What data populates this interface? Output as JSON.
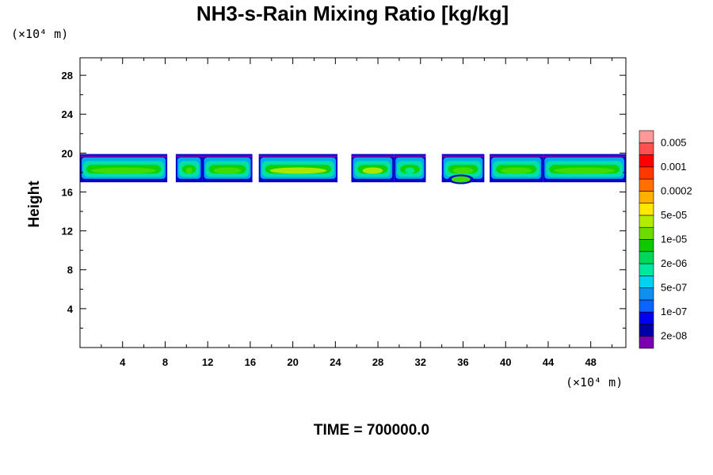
{
  "chart_data": {
    "type": "heatmap",
    "title": "NH3-s-Rain Mixing Ratio [kg/kg]",
    "xlabel": "",
    "ylabel": "Height",
    "x_unit_label": "(×10⁴ m)",
    "y_unit_label": "(×10⁴ m)",
    "xlim": [
      0,
      51.3
    ],
    "ylim": [
      0,
      29.8
    ],
    "x_ticks": [
      4,
      8,
      12,
      16,
      20,
      24,
      28,
      32,
      36,
      40,
      44,
      48
    ],
    "y_ticks": [
      4,
      8,
      12,
      16,
      20,
      24,
      28
    ],
    "grid": false,
    "legend_placement": "right",
    "footer": "TIME = 700000.0",
    "colorbar": {
      "levels": [
        "2e-08",
        "1e-07",
        "5e-07",
        "2e-06",
        "1e-05",
        "5e-05",
        "0.0002",
        "0.001",
        "0.005"
      ],
      "colors": [
        "#7a00b0",
        "#0000a8",
        "#0000f0",
        "#0a64ff",
        "#1090ee",
        "#00d2f0",
        "#00e8a0",
        "#00d85a",
        "#10c800",
        "#6cdc00",
        "#b4ec00",
        "#ffe800",
        "#ffb000",
        "#ff7000",
        "#ff3800",
        "#ff0000",
        "#ff5050",
        "#ff9898"
      ]
    },
    "band": {
      "description_values": "Rain layer concentrated between heights ~17 and ~20 (×10⁴ m)",
      "bottom_height": 17.0,
      "top_height": 19.9,
      "gap_x": [
        32.5,
        34.0
      ],
      "segments": [
        {
          "x0": 0.0,
          "x1": 8.2,
          "core": "1e-05"
        },
        {
          "x0": 9.0,
          "x1": 11.5,
          "core": "1e-05"
        },
        {
          "x0": 11.5,
          "x1": 16.2,
          "core": "1e-05"
        },
        {
          "x0": 16.8,
          "x1": 24.2,
          "core": "5e-05"
        },
        {
          "x0": 25.5,
          "x1": 29.5,
          "core": "5e-05"
        },
        {
          "x0": 29.5,
          "x1": 32.5,
          "core": "2e-06"
        },
        {
          "x0": 34.0,
          "x1": 38.0,
          "core": "1e-05"
        },
        {
          "x0": 38.5,
          "x1": 43.5,
          "core": "1e-05"
        },
        {
          "x0": 43.5,
          "x1": 51.3,
          "core": "1e-05"
        }
      ]
    }
  }
}
